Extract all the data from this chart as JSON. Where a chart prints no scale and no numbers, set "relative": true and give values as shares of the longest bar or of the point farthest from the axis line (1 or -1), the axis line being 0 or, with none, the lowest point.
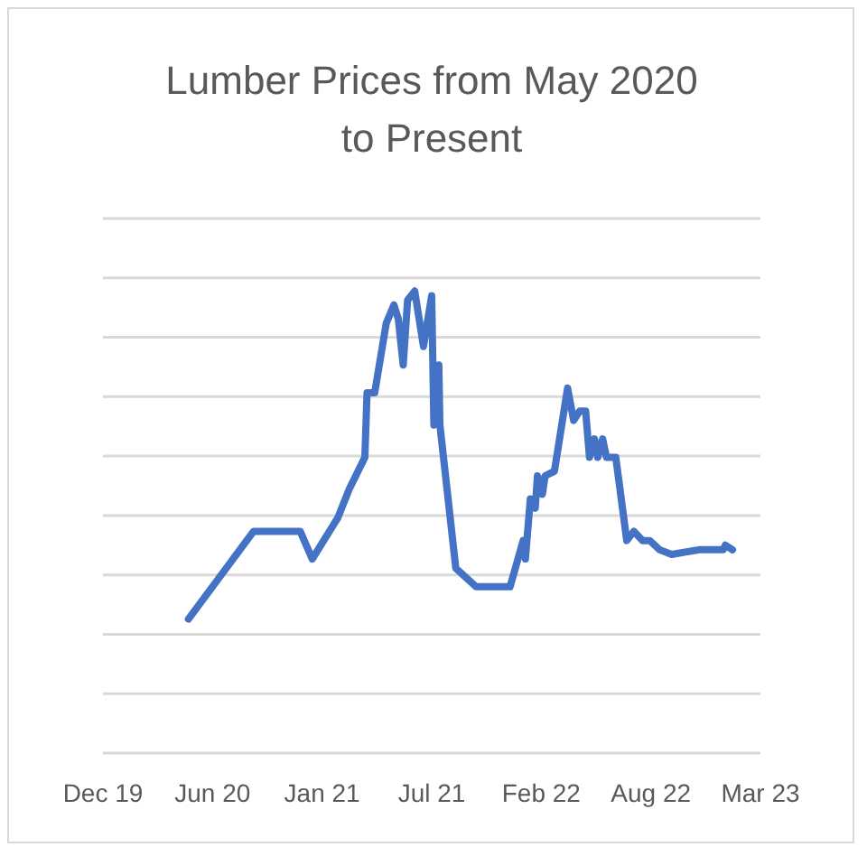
{
  "chart_data": {
    "type": "line",
    "title": "Lumber Prices from May 2020 to Present",
    "relative": true,
    "grid": "y",
    "marker": "none",
    "line_style": "solid",
    "xlim": [
      "2019-12-01",
      "2023-03-15"
    ],
    "xticks": [
      {
        "value": "2019-12-01",
        "label": "Dec 19"
      },
      {
        "value": "2020-06-18",
        "label": "Jun 20"
      },
      {
        "value": "2021-01-04",
        "label": "Jan 21"
      },
      {
        "value": "2021-07-23",
        "label": "Jul 21"
      },
      {
        "value": "2022-02-08",
        "label": "Feb 22"
      },
      {
        "value": "2022-08-27",
        "label": "Aug 22"
      },
      {
        "value": "2023-03-15",
        "label": "Mar 23"
      }
    ],
    "x": [
      "2020-05-05",
      "2020-09-01",
      "2020-09-20",
      "2020-11-25",
      "2020-12-17",
      "2021-02-02",
      "2021-02-22",
      "2021-03-23",
      "2021-03-27",
      "2021-04-10",
      "2021-05-01",
      "2021-05-15",
      "2021-05-23",
      "2021-06-01",
      "2021-06-09",
      "2021-06-22",
      "2021-07-08",
      "2021-07-23",
      "2021-07-27",
      "2021-08-05",
      "2021-08-07",
      "2021-09-05",
      "2021-10-12",
      "2021-10-17",
      "2021-12-13",
      "2022-01-06",
      "2022-01-10",
      "2022-01-19",
      "2022-01-28",
      "2022-02-01",
      "2022-02-10",
      "2022-02-15",
      "2022-03-04",
      "2022-03-28",
      "2022-04-08",
      "2022-04-19",
      "2022-04-30",
      "2022-05-07",
      "2022-05-16",
      "2022-05-22",
      "2022-05-31",
      "2022-06-07",
      "2022-06-24",
      "2022-07-14",
      "2022-07-27",
      "2022-08-12",
      "2022-08-25",
      "2022-09-12",
      "2022-10-04",
      "2022-11-23",
      "2023-01-06",
      "2023-01-10",
      "2023-01-23"
    ],
    "series": [
      {
        "color": "#4472c4",
        "values": [
          0.29,
          0.48,
          0.48,
          0.48,
          0.42,
          0.51,
          0.57,
          0.64,
          0.78,
          0.78,
          0.93,
          0.97,
          0.94,
          0.84,
          0.98,
          1,
          0.88,
          0.99,
          0.71,
          0.84,
          0.71,
          0.4,
          0.36,
          0.36,
          0.36,
          0.46,
          0.42,
          0.55,
          0.53,
          0.6,
          0.56,
          0.6,
          0.61,
          0.79,
          0.72,
          0.74,
          0.74,
          0.64,
          0.68,
          0.64,
          0.68,
          0.64,
          0.64,
          0.46,
          0.48,
          0.46,
          0.46,
          0.44,
          0.43,
          0.44,
          0.44,
          0.45,
          0.44
        ]
      }
    ]
  }
}
